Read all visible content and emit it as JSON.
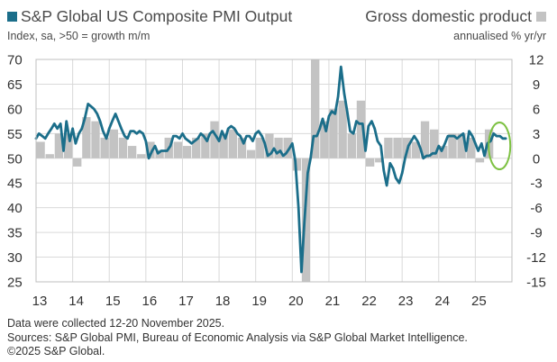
{
  "legend": {
    "left_label": "S&P Global US Composite PMI Output",
    "right_label": "Gross domestic product",
    "left_unit": "Index, sa, >50 = growth m/m",
    "right_unit": "annualised % yr/yr"
  },
  "colors": {
    "pmi_line": "#1b6e8a",
    "gdp_bar": "#c3c3c3",
    "highlight_circle": "#7dc142",
    "grid": "#d9d9d9"
  },
  "chart_data": {
    "type": "line",
    "x_axis": {
      "ticks": [
        "13",
        "14",
        "15",
        "16",
        "17",
        "18",
        "19",
        "20",
        "21",
        "22",
        "23",
        "24",
        "25"
      ],
      "range": [
        2013.0,
        2026.0
      ]
    },
    "left_axis": {
      "ticks": [
        "70",
        "65",
        "60",
        "55",
        "50",
        "45",
        "40",
        "35",
        "30",
        "25"
      ],
      "range": [
        25,
        70
      ]
    },
    "right_axis": {
      "ticks": [
        "12",
        "9",
        "6",
        "3",
        "0",
        "-3",
        "-6",
        "-9",
        "-12",
        "-15"
      ],
      "range": [
        -15,
        12
      ]
    },
    "grid": true,
    "series": [
      {
        "name": "S&P Global US Composite PMI Output",
        "axis": "left",
        "type": "line",
        "x": [
          2013.0,
          2013.08,
          2013.17,
          2013.25,
          2013.33,
          2013.42,
          2013.5,
          2013.58,
          2013.67,
          2013.75,
          2013.83,
          2013.92,
          2014.0,
          2014.08,
          2014.17,
          2014.25,
          2014.33,
          2014.42,
          2014.5,
          2014.58,
          2014.67,
          2014.75,
          2014.83,
          2014.92,
          2015.0,
          2015.08,
          2015.17,
          2015.25,
          2015.33,
          2015.42,
          2015.5,
          2015.58,
          2015.67,
          2015.75,
          2015.83,
          2015.92,
          2016.0,
          2016.08,
          2016.17,
          2016.25,
          2016.33,
          2016.42,
          2016.5,
          2016.58,
          2016.67,
          2016.75,
          2016.83,
          2016.92,
          2017.0,
          2017.08,
          2017.17,
          2017.25,
          2017.33,
          2017.42,
          2017.5,
          2017.58,
          2017.67,
          2017.75,
          2017.83,
          2017.92,
          2018.0,
          2018.08,
          2018.17,
          2018.25,
          2018.33,
          2018.42,
          2018.5,
          2018.58,
          2018.67,
          2018.75,
          2018.83,
          2018.92,
          2019.0,
          2019.08,
          2019.17,
          2019.25,
          2019.33,
          2019.42,
          2019.5,
          2019.58,
          2019.67,
          2019.75,
          2019.83,
          2019.92,
          2020.0,
          2020.08,
          2020.17,
          2020.25,
          2020.33,
          2020.42,
          2020.5,
          2020.58,
          2020.67,
          2020.75,
          2020.83,
          2020.92,
          2021.0,
          2021.08,
          2021.17,
          2021.25,
          2021.33,
          2021.42,
          2021.5,
          2021.58,
          2021.67,
          2021.75,
          2021.83,
          2021.92,
          2022.0,
          2022.08,
          2022.17,
          2022.25,
          2022.33,
          2022.42,
          2022.5,
          2022.58,
          2022.67,
          2022.75,
          2022.83,
          2022.92,
          2023.0,
          2023.08,
          2023.17,
          2023.25,
          2023.33,
          2023.42,
          2023.5,
          2023.58,
          2023.67,
          2023.75,
          2023.83,
          2023.92,
          2024.0,
          2024.08,
          2024.17,
          2024.25,
          2024.33,
          2024.42,
          2024.5,
          2024.58,
          2024.67,
          2024.75,
          2024.83,
          2024.92,
          2025.0,
          2025.08,
          2025.17,
          2025.25,
          2025.33,
          2025.42,
          2025.5,
          2025.58,
          2025.67,
          2025.75,
          2025.83
        ],
        "values": [
          54.0,
          55.0,
          54.5,
          54.0,
          55.0,
          56.0,
          57.0,
          56.0,
          57.0,
          51.5,
          57.5,
          53.5,
          56.0,
          53.0,
          55.0,
          56.0,
          58.0,
          61.0,
          60.5,
          60.0,
          59.0,
          57.5,
          55.5,
          54.0,
          56.0,
          57.5,
          59.0,
          57.5,
          56.0,
          54.5,
          54.0,
          55.5,
          55.5,
          55.0,
          55.5,
          55.0,
          53.5,
          50.0,
          51.5,
          52.5,
          51.0,
          51.5,
          51.5,
          51.5,
          52.5,
          54.5,
          54.5,
          54.0,
          55.0,
          54.0,
          53.5,
          53.0,
          53.5,
          54.0,
          55.0,
          54.5,
          53.5,
          55.0,
          55.5,
          54.5,
          53.5,
          55.5,
          54.0,
          56.0,
          56.5,
          56.0,
          55.0,
          54.5,
          53.0,
          54.5,
          54.5,
          53.5,
          55.0,
          55.5,
          54.5,
          53.0,
          50.5,
          51.0,
          52.0,
          51.0,
          51.5,
          50.5,
          51.0,
          52.0,
          53.0,
          49.5,
          40.0,
          27.0,
          37.0,
          47.0,
          50.0,
          54.5,
          54.5,
          56.0,
          58.0,
          55.5,
          58.5,
          59.5,
          59.0,
          62.5,
          68.5,
          63.0,
          59.5,
          55.5,
          55.0,
          57.5,
          57.0,
          57.0,
          51.5,
          56.5,
          57.5,
          56.0,
          53.5,
          52.5,
          47.5,
          44.5,
          49.0,
          48.0,
          46.0,
          45.0,
          47.0,
          50.0,
          52.5,
          53.5,
          54.5,
          53.5,
          52.0,
          50.0,
          50.5,
          50.5,
          51.0,
          51.0,
          52.5,
          51.5,
          53.0,
          54.5,
          54.5,
          54.5,
          54.0,
          54.5,
          55.0,
          51.5,
          55.5,
          54.5,
          53.0,
          51.5,
          53.0,
          50.5,
          53.0,
          53.5,
          55.0,
          54.5,
          54.5,
          54.0,
          54.0
        ]
      },
      {
        "name": "Gross domestic product",
        "axis": "right",
        "type": "bar",
        "x": [
          2013.125,
          2013.375,
          2013.625,
          2013.875,
          2014.125,
          2014.375,
          2014.625,
          2014.875,
          2015.125,
          2015.375,
          2015.625,
          2015.875,
          2016.125,
          2016.375,
          2016.625,
          2016.875,
          2017.125,
          2017.375,
          2017.625,
          2017.875,
          2018.125,
          2018.375,
          2018.625,
          2018.875,
          2019.125,
          2019.375,
          2019.625,
          2019.875,
          2020.125,
          2020.375,
          2020.625,
          2020.875,
          2021.125,
          2021.375,
          2021.625,
          2021.875,
          2022.125,
          2022.375,
          2022.625,
          2022.875,
          2023.125,
          2023.375,
          2023.625,
          2023.875,
          2024.125,
          2024.375,
          2024.625,
          2024.875,
          2025.125,
          2025.375
        ],
        "values": [
          2.0,
          0.5,
          3.0,
          3.0,
          -1.0,
          5.0,
          4.5,
          2.5,
          3.5,
          2.5,
          1.5,
          0.5,
          2.0,
          1.0,
          2.5,
          2.0,
          1.5,
          2.5,
          3.0,
          4.5,
          3.0,
          3.5,
          2.5,
          1.0,
          2.5,
          3.0,
          2.5,
          2.5,
          -1.5,
          -15.0,
          12.0,
          4.5,
          6.0,
          7.0,
          3.0,
          7.0,
          -1.0,
          -0.5,
          2.5,
          2.5,
          2.5,
          2.0,
          4.5,
          3.5,
          1.5,
          3.0,
          3.0,
          2.5,
          -0.5,
          3.5
        ]
      }
    ],
    "annotations": [
      {
        "type": "ellipse",
        "label": "",
        "x_center": 2025.66,
        "y_center": 52.5
      }
    ]
  },
  "footer": {
    "line1": "Data were collected 12-20 November 2025.",
    "line2": "Sources: S&P Global PMI, Bureau of Economic Analysis via S&P Global Market Intelligence.",
    "line3": "©2025 S&P Global."
  }
}
